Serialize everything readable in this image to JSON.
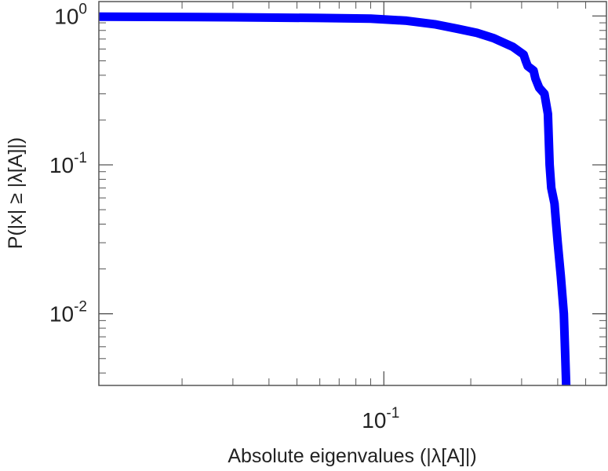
{
  "chart_data": {
    "type": "line",
    "title": "",
    "xlabel": "Absolute eigenvalues (|λ[A]|)",
    "ylabel": "P(|x| ≥ |λ[A]|)",
    "xscale": "log",
    "yscale": "log",
    "xlim": [
      0.0103,
      0.59
    ],
    "ylim": [
      0.0033,
      1.25
    ],
    "grid": false,
    "legend": "none",
    "x_ticks": [
      {
        "base": "10",
        "exp": "-1",
        "value": 0.1
      }
    ],
    "y_ticks": [
      {
        "base": "10",
        "exp": "0",
        "value": 1
      },
      {
        "base": "10",
        "exp": "-1",
        "value": 0.1
      },
      {
        "base": "10",
        "exp": "-2",
        "value": 0.01
      }
    ],
    "series": [
      {
        "color": "#0000ff",
        "x": [
          0.0103,
          0.03,
          0.06,
          0.09,
          0.12,
          0.15,
          0.18,
          0.21,
          0.24,
          0.28,
          0.305,
          0.31,
          0.315,
          0.33,
          0.335,
          0.345,
          0.36,
          0.37,
          0.375,
          0.38,
          0.39,
          0.395,
          0.4,
          0.41,
          0.42,
          0.425,
          0.428
        ],
        "y": [
          0.99,
          0.98,
          0.97,
          0.96,
          0.93,
          0.88,
          0.82,
          0.77,
          0.71,
          0.62,
          0.55,
          0.5,
          0.46,
          0.43,
          0.38,
          0.33,
          0.3,
          0.22,
          0.1,
          0.07,
          0.055,
          0.04,
          0.03,
          0.018,
          0.01,
          0.005,
          0.0033
        ]
      }
    ]
  }
}
